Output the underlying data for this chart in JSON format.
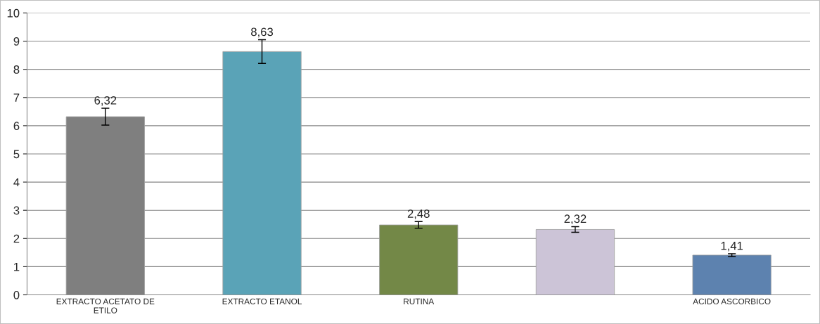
{
  "chart_data": {
    "type": "bar",
    "categories": [
      "EXTRACTO ACETATO DE\nETILO",
      "EXTRACTO ETANOL",
      "RUTINA",
      null,
      "ACIDO ASCORBICO"
    ],
    "values": [
      6.32,
      8.63,
      2.48,
      2.32,
      1.41
    ],
    "colors": [
      "#7f7f7f",
      "#4bacc6",
      "#77933c",
      "#ccc1da",
      "#4f81bd"
    ],
    "errors": [
      0.3,
      0.42,
      0.12,
      0.1,
      0.05
    ],
    "value_labels": [
      "6,32",
      "8,63",
      "2,48",
      "2,32",
      "1,41"
    ],
    "ylim": [
      0,
      10
    ],
    "yticks": [
      0,
      1,
      2,
      3,
      4,
      5,
      6,
      7,
      8,
      9,
      10
    ],
    "grid": "y",
    "legend": false
  }
}
